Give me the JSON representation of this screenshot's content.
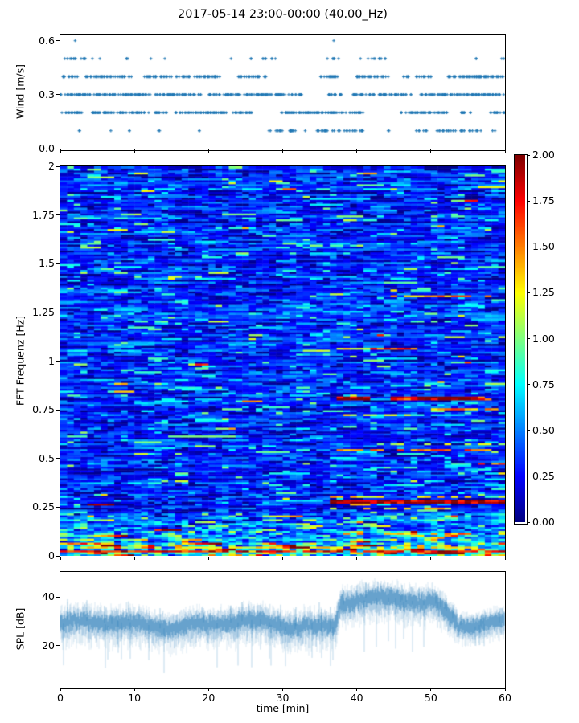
{
  "title": "2017-05-14 23:00-00:00 (40.00_Hz)",
  "chart_data": [
    {
      "name": "wind",
      "type": "scatter",
      "ylabel": "Wind [m/s]",
      "xlim": [
        0,
        60
      ],
      "ylim": [
        0,
        0.634
      ],
      "yticks": {
        "values": [
          0,
          0.3,
          0.6
        ],
        "labels": [
          "0.0",
          "0.3",
          "0.6"
        ]
      },
      "xtick_values": [
        0,
        10,
        20,
        30,
        40,
        50,
        60
      ],
      "marker": "plus",
      "marker_color": "#1f77b4",
      "seed": 7,
      "levels": [
        {
          "value": 0.6,
          "explicit_times": [
            2.0,
            36.9
          ]
        },
        {
          "value": 0.5,
          "per_min": 3.2,
          "segments": [
            [
              0.6,
              5.5
            ],
            [
              8.3,
              9.3
            ],
            [
              12.2,
              12.6
            ],
            [
              14.0,
              14.4
            ],
            [
              23.0,
              23.3
            ],
            [
              25.5,
              26.1
            ],
            [
              27.0,
              29.2
            ],
            [
              35.8,
              37.6
            ],
            [
              40.5,
              44.0
            ],
            [
              55.8,
              56.3
            ],
            [
              59.4,
              60.0
            ]
          ]
        },
        {
          "value": 0.4,
          "per_min": 6.0,
          "segments": [
            [
              0.0,
              2.5
            ],
            [
              3.0,
              9.8
            ],
            [
              11.0,
              21.8
            ],
            [
              24.0,
              27.8
            ],
            [
              34.7,
              37.5
            ],
            [
              40.0,
              44.6
            ],
            [
              46.0,
              47.0
            ],
            [
              48.0,
              50.2
            ],
            [
              52.0,
              57.8
            ],
            [
              54.8,
              60.0
            ]
          ]
        },
        {
          "value": 0.3,
          "per_min": 8.0,
          "segments": [
            [
              0.0,
              19.0
            ],
            [
              20.0,
              32.8
            ],
            [
              36.0,
              38.4
            ],
            [
              39.5,
              47.4
            ],
            [
              48.6,
              54.2
            ],
            [
              54.0,
              60.0
            ]
          ]
        },
        {
          "value": 0.2,
          "per_min": 6.5,
          "segments": [
            [
              0.0,
              3.0
            ],
            [
              4.0,
              14.5
            ],
            [
              15.5,
              26.0
            ],
            [
              29.8,
              41.8
            ],
            [
              46.0,
              52.3
            ],
            [
              54.0,
              55.6
            ],
            [
              57.9,
              60.0
            ]
          ]
        },
        {
          "value": 0.1,
          "per_min": 4.0,
          "segments": [
            [
              2.2,
              2.7
            ],
            [
              6.8,
              7.1
            ],
            [
              9.2,
              9.6
            ],
            [
              13.2,
              13.7
            ],
            [
              18.5,
              18.9
            ],
            [
              28.0,
              30.0
            ],
            [
              30.5,
              37.0
            ],
            [
              37.5,
              41.0
            ],
            [
              44.2,
              44.6
            ],
            [
              48.0,
              49.5
            ],
            [
              50.8,
              57.2
            ],
            [
              58.3,
              58.7
            ]
          ]
        }
      ]
    },
    {
      "name": "fft_spectrogram",
      "type": "heatmap",
      "ylabel": "FFT Frequenz [Hz]",
      "xlim": [
        0,
        60
      ],
      "ylim": [
        0,
        2
      ],
      "vmin": 0,
      "vmax": 2,
      "colormap": "jet",
      "yticks": {
        "values": [
          0,
          0.25,
          0.5,
          0.75,
          1,
          1.25,
          1.5,
          1.75,
          2
        ],
        "labels": [
          "0",
          "0.25",
          "0.5",
          "0.75",
          "1",
          "1.25",
          "1.5",
          "1.75",
          "2"
        ]
      },
      "xtick_values": [
        0,
        10,
        20,
        30,
        40,
        50,
        60
      ],
      "colorbar": {
        "tick_values": [
          0,
          0.25,
          0.5,
          0.75,
          1,
          1.25,
          1.5,
          1.75,
          2
        ],
        "tick_labels": [
          "0.00",
          "0.25",
          "0.50",
          "0.75",
          "1.00",
          "1.25",
          "1.50",
          "1.75",
          "2.00"
        ]
      },
      "bins": {
        "time": 66,
        "freq": 200
      },
      "seed": 42,
      "noise": {
        "mean": 0.3,
        "std": 0.16,
        "persistence": 0.45,
        "pop_probability": 0.055,
        "pop_boost_min": 0.25,
        "pop_boost_max": 0.7,
        "low_freq_boost_below_hz": 0.22,
        "low_freq_boost": 0.35
      },
      "features": [
        {
          "hz": 0.8,
          "t": [
            37.4,
            41.8
          ],
          "value": 2.0,
          "presence": 1.0,
          "rows": 2
        },
        {
          "hz": 0.8,
          "t": [
            41.8,
            45.0
          ],
          "value": 1.55,
          "presence": 0.7,
          "rows": 1
        },
        {
          "hz": 0.8,
          "t": [
            45.0,
            57.0
          ],
          "value": 1.7,
          "presence": 0.9,
          "rows": 2
        },
        {
          "hz": 0.8,
          "t": [
            48.5,
            51.5
          ],
          "value": 2.0,
          "presence": 1.0,
          "rows": 2
        },
        {
          "hz": 0.8,
          "t": [
            52.5,
            55.5
          ],
          "value": 2.0,
          "presence": 1.0,
          "rows": 2
        },
        {
          "hz": 0.8,
          "t": [
            55.5,
            57.5
          ],
          "value": 1.35,
          "presence": 0.8,
          "rows": 1
        },
        {
          "hz": 0.755,
          "t": [
            50.0,
            60.0
          ],
          "value": 1.5,
          "presence": 0.75,
          "rows": 1
        },
        {
          "hz": 0.72,
          "t": [
            37.5,
            47.0
          ],
          "value": 1.25,
          "presence": 0.75,
          "rows": 1
        },
        {
          "hz": 0.27,
          "t": [
            36.5,
            60.0
          ],
          "value": 1.95,
          "presence": 0.95,
          "rows": 2
        },
        {
          "hz": 0.3,
          "t": [
            37.0,
            60.0
          ],
          "value": 1.3,
          "presence": 0.5,
          "rows": 1
        },
        {
          "hz": 0.24,
          "t": [
            37.0,
            52.0
          ],
          "value": 1.3,
          "presence": 0.4,
          "rows": 1
        },
        {
          "hz": 0.26,
          "t": [
            4.5,
            6.5
          ],
          "value": 1.9,
          "presence": 1.0,
          "rows": 1
        },
        {
          "hz": 1.33,
          "t": [
            45.0,
            57.5
          ],
          "value": 1.45,
          "presence": 0.85,
          "rows": 1
        },
        {
          "hz": 1.36,
          "t": [
            44.0,
            47.0
          ],
          "value": 1.2,
          "presence": 0.7,
          "rows": 1
        },
        {
          "hz": 1.06,
          "t": [
            37.5,
            42.5
          ],
          "value": 1.3,
          "presence": 0.85,
          "rows": 1
        },
        {
          "hz": 1.065,
          "t": [
            42.5,
            48.0
          ],
          "value": 1.6,
          "presence": 0.9,
          "rows": 1
        },
        {
          "hz": 1.14,
          "t": [
            41.0,
            43.5
          ],
          "value": 1.55,
          "presence": 0.9,
          "rows": 1
        },
        {
          "hz": 1.0,
          "t": [
            40.5,
            43.0
          ],
          "value": 1.1,
          "presence": 0.7,
          "rows": 1
        },
        {
          "hz": 0.54,
          "t": [
            38.0,
            60.0
          ],
          "value": 1.5,
          "presence": 0.55,
          "rows": 1
        },
        {
          "hz": 0.575,
          "t": [
            40.0,
            60.0
          ],
          "value": 1.15,
          "presence": 0.45,
          "rows": 1
        },
        {
          "hz": 0.47,
          "t": [
            56.5,
            60.0
          ],
          "value": 1.55,
          "presence": 0.9,
          "rows": 1
        },
        {
          "hz": 0.135,
          "t": [
            13.5,
            15.5
          ],
          "value": 1.9,
          "presence": 1.0,
          "rows": 1
        },
        {
          "hz": 0.115,
          "t": [
            37.0,
            60.0
          ],
          "value": 1.45,
          "presence": 0.5,
          "rows": 1
        },
        {
          "hz": 0.02,
          "t": [
            0.0,
            60.0
          ],
          "value": 1.75,
          "presence": 0.9,
          "rows": 1
        },
        {
          "hz": 0.045,
          "t": [
            0.0,
            60.0
          ],
          "value": 1.25,
          "presence": 0.6,
          "rows": 1
        },
        {
          "hz": 0.065,
          "t": [
            0.0,
            7.0
          ],
          "value": 1.5,
          "presence": 0.8,
          "rows": 1
        },
        {
          "hz": 0.1,
          "t": [
            0.0,
            9.0
          ],
          "value": 0.95,
          "presence": 0.7,
          "rows": 2
        },
        {
          "hz": 1.92,
          "t": [
            28.5,
            29.5
          ],
          "value": 1.3,
          "presence": 1.0,
          "rows": 1
        }
      ]
    },
    {
      "name": "spl",
      "type": "line",
      "ylabel": "SPL [dB]",
      "xlabel": "time [min]",
      "xlim": [
        0,
        60
      ],
      "ylim": [
        3,
        50
      ],
      "yticks": {
        "values": [
          20,
          40
        ],
        "labels": [
          "20",
          "40"
        ]
      },
      "xticks": {
        "values": [
          0,
          10,
          20,
          30,
          40,
          50,
          60
        ],
        "labels": [
          "0",
          "10",
          "20",
          "30",
          "40",
          "50",
          "60"
        ]
      },
      "color": "#1f77b4",
      "seed": 99,
      "baseline": [
        {
          "t": [
            0.0,
            37.0
          ],
          "mean": 28.8,
          "core": 5.0,
          "whisker": 9.0,
          "downspike": 20,
          "upspike": 9
        },
        {
          "t": [
            37.0,
            37.8
          ],
          "ramp": [
            28.8,
            38.2
          ],
          "core": 5.5,
          "whisker": 9.0,
          "downspike": 22,
          "upspike": 7
        },
        {
          "t": [
            37.8,
            50.5
          ],
          "mean": 38.2,
          "core": 5.5,
          "whisker": 9.0,
          "downspike": 22,
          "upspike": 7
        },
        {
          "t": [
            50.5,
            53.5
          ],
          "ramp": [
            38.2,
            30.5
          ],
          "core": 5.0,
          "whisker": 8.0,
          "downspike": 16,
          "upspike": 6
        },
        {
          "t": [
            53.5,
            60.0
          ],
          "mean": 29.5,
          "core": 4.0,
          "whisker": 6.0,
          "downspike": 10,
          "upspike": 5
        }
      ]
    }
  ]
}
